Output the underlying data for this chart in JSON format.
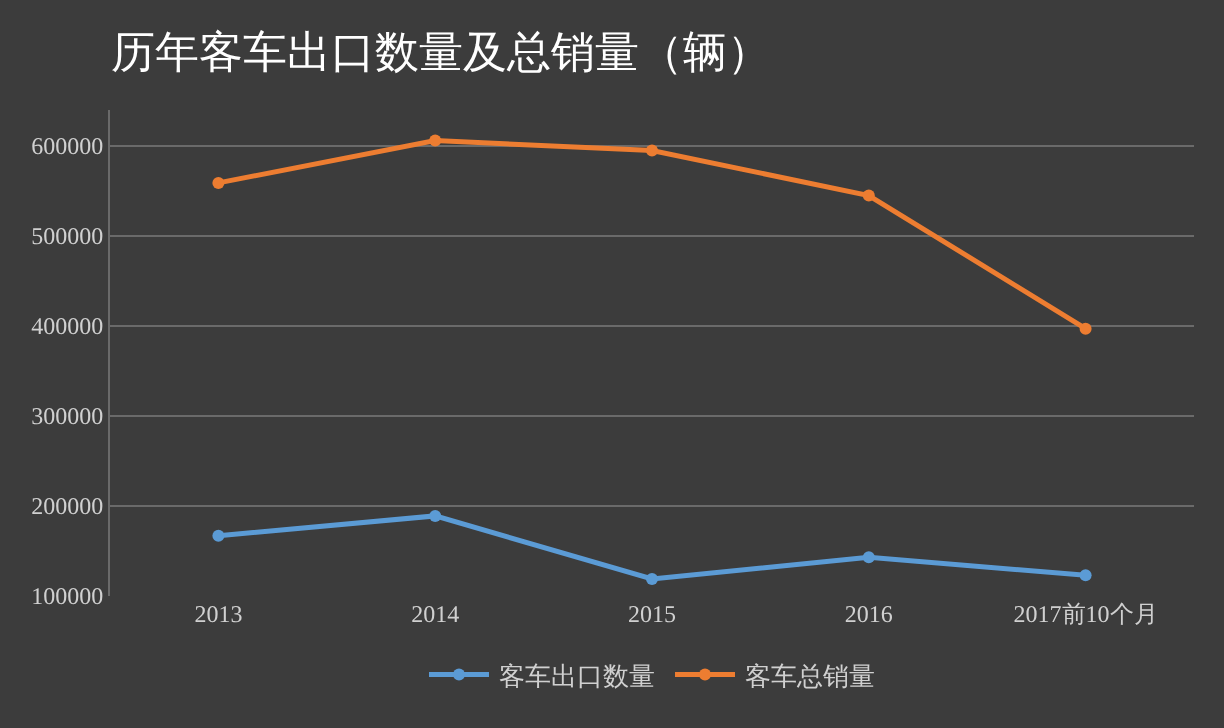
{
  "chart_data": {
    "type": "line",
    "title": "历年客车出口数量及总销量（辆）",
    "categories": [
      "2013",
      "2014",
      "2015",
      "2016",
      "2017前10个月"
    ],
    "series": [
      {
        "name": "客车出口数量",
        "color": "#5b9bd5",
        "values": [
          167000,
          189000,
          119000,
          143000,
          123000
        ]
      },
      {
        "name": "客车总销量",
        "color": "#ed7d31",
        "values": [
          559000,
          606000,
          595000,
          545000,
          397000
        ]
      }
    ],
    "ylim": [
      100000,
      640000
    ],
    "yticks": [
      100000,
      200000,
      300000,
      400000,
      500000,
      600000
    ],
    "grid": "y",
    "legend": "bottom",
    "marker": "circle",
    "line_style": "solid"
  }
}
